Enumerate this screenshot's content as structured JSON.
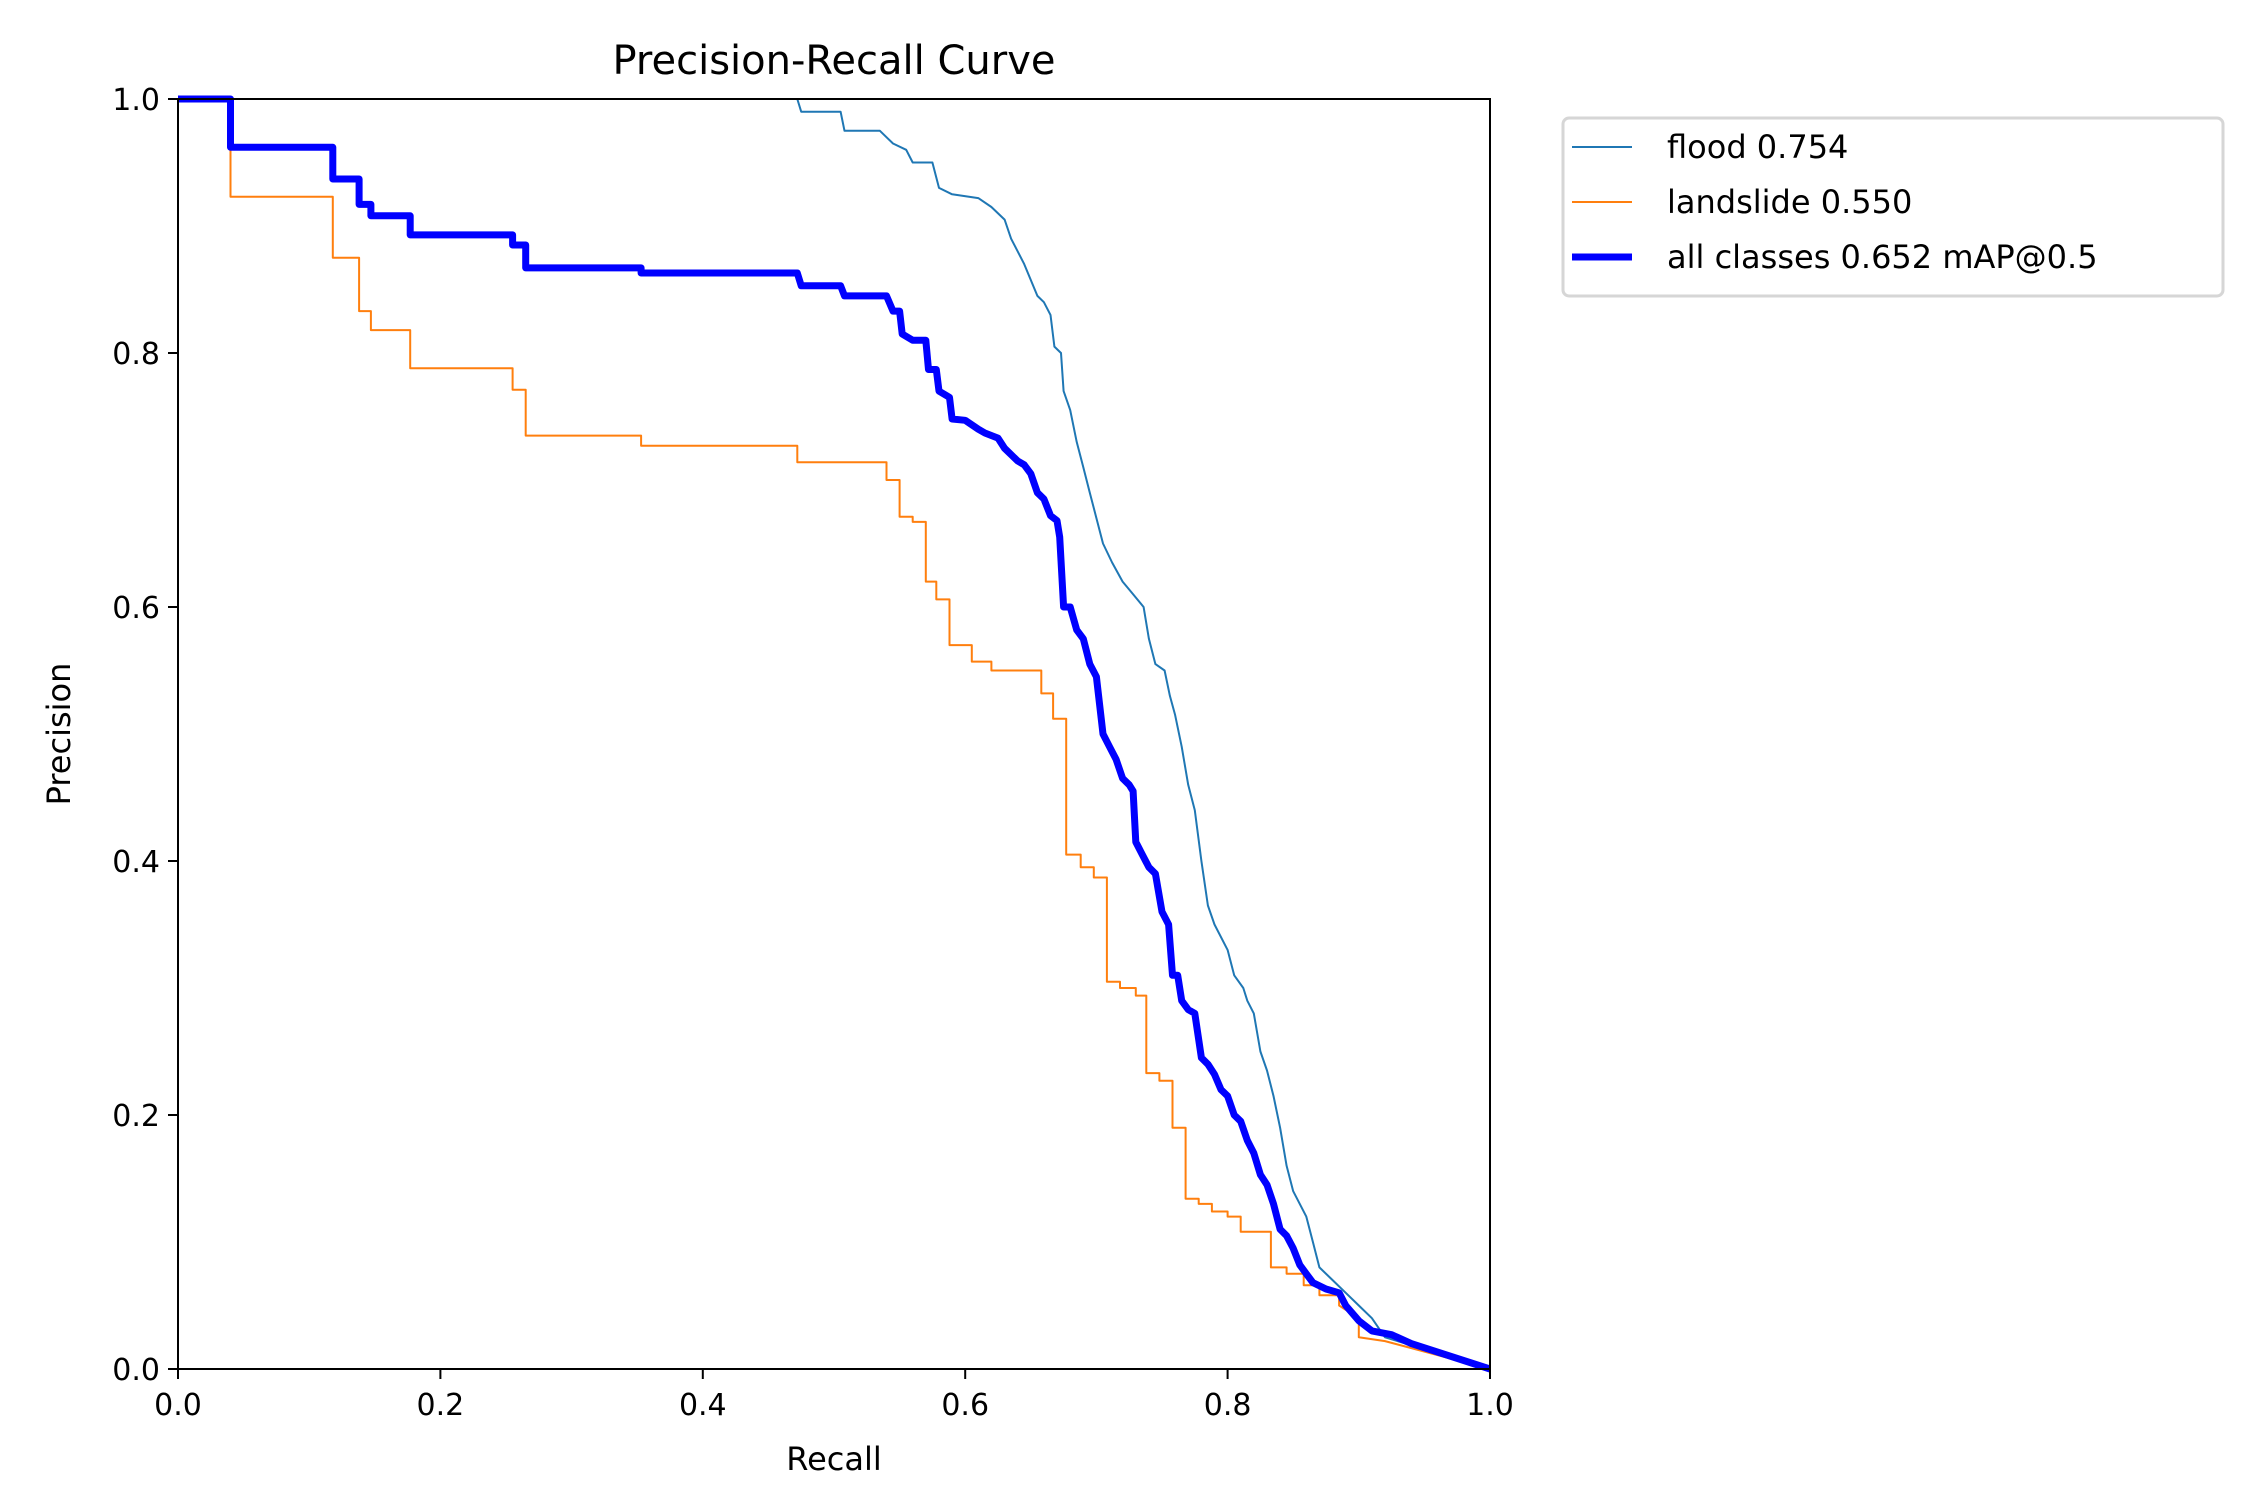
{
  "chart_data": {
    "type": "line",
    "title": "Precision-Recall Curve",
    "xlabel": "Recall",
    "ylabel": "Precision",
    "xlim": [
      0,
      1
    ],
    "ylim": [
      0,
      1
    ],
    "grid": false,
    "legend_placement": "outside-top-right",
    "xticks": [
      "0.0",
      "0.2",
      "0.4",
      "0.6",
      "0.8",
      "1.0"
    ],
    "yticks": [
      "0.0",
      "0.2",
      "0.4",
      "0.6",
      "0.8",
      "1.0"
    ],
    "series": [
      {
        "name": "flood 0.754",
        "color": "#1f77b4",
        "width": "thin",
        "points": [
          [
            0,
            1
          ],
          [
            0.472,
            1
          ],
          [
            0.475,
            0.99
          ],
          [
            0.505,
            0.99
          ],
          [
            0.508,
            0.975
          ],
          [
            0.535,
            0.975
          ],
          [
            0.545,
            0.965
          ],
          [
            0.555,
            0.96
          ],
          [
            0.56,
            0.95
          ],
          [
            0.575,
            0.95
          ],
          [
            0.58,
            0.93
          ],
          [
            0.59,
            0.925
          ],
          [
            0.61,
            0.922
          ],
          [
            0.62,
            0.915
          ],
          [
            0.63,
            0.905
          ],
          [
            0.635,
            0.89
          ],
          [
            0.64,
            0.88
          ],
          [
            0.645,
            0.87
          ],
          [
            0.655,
            0.845
          ],
          [
            0.66,
            0.84
          ],
          [
            0.665,
            0.83
          ],
          [
            0.668,
            0.805
          ],
          [
            0.673,
            0.8
          ],
          [
            0.675,
            0.77
          ],
          [
            0.68,
            0.755
          ],
          [
            0.685,
            0.73
          ],
          [
            0.69,
            0.71
          ],
          [
            0.695,
            0.69
          ],
          [
            0.7,
            0.67
          ],
          [
            0.705,
            0.65
          ],
          [
            0.712,
            0.635
          ],
          [
            0.72,
            0.62
          ],
          [
            0.728,
            0.61
          ],
          [
            0.736,
            0.6
          ],
          [
            0.74,
            0.575
          ],
          [
            0.745,
            0.555
          ],
          [
            0.752,
            0.55
          ],
          [
            0.756,
            0.53
          ],
          [
            0.76,
            0.515
          ],
          [
            0.765,
            0.49
          ],
          [
            0.77,
            0.46
          ],
          [
            0.775,
            0.44
          ],
          [
            0.78,
            0.4
          ],
          [
            0.785,
            0.365
          ],
          [
            0.79,
            0.35
          ],
          [
            0.8,
            0.33
          ],
          [
            0.805,
            0.31
          ],
          [
            0.812,
            0.3
          ],
          [
            0.815,
            0.29
          ],
          [
            0.82,
            0.28
          ],
          [
            0.825,
            0.25
          ],
          [
            0.83,
            0.235
          ],
          [
            0.835,
            0.215
          ],
          [
            0.84,
            0.19
          ],
          [
            0.845,
            0.16
          ],
          [
            0.85,
            0.14
          ],
          [
            0.86,
            0.12
          ],
          [
            0.865,
            0.1
          ],
          [
            0.87,
            0.08
          ],
          [
            0.88,
            0.07
          ],
          [
            0.89,
            0.06
          ],
          [
            0.9,
            0.05
          ],
          [
            0.91,
            0.04
          ],
          [
            0.92,
            0.025
          ],
          [
            1,
            0
          ]
        ]
      },
      {
        "name": "landslide 0.550",
        "color": "#ff7f0e",
        "width": "thin",
        "points": [
          [
            0,
            1
          ],
          [
            0.04,
            1
          ],
          [
            0.04,
            0.923
          ],
          [
            0.118,
            0.923
          ],
          [
            0.118,
            0.875
          ],
          [
            0.138,
            0.875
          ],
          [
            0.138,
            0.833
          ],
          [
            0.147,
            0.833
          ],
          [
            0.147,
            0.818
          ],
          [
            0.177,
            0.818
          ],
          [
            0.177,
            0.788
          ],
          [
            0.255,
            0.788
          ],
          [
            0.255,
            0.771
          ],
          [
            0.265,
            0.771
          ],
          [
            0.265,
            0.735
          ],
          [
            0.353,
            0.735
          ],
          [
            0.353,
            0.727
          ],
          [
            0.472,
            0.727
          ],
          [
            0.472,
            0.714
          ],
          [
            0.54,
            0.714
          ],
          [
            0.54,
            0.7
          ],
          [
            0.55,
            0.7
          ],
          [
            0.55,
            0.671
          ],
          [
            0.56,
            0.671
          ],
          [
            0.56,
            0.667
          ],
          [
            0.57,
            0.667
          ],
          [
            0.57,
            0.62
          ],
          [
            0.578,
            0.62
          ],
          [
            0.578,
            0.606
          ],
          [
            0.588,
            0.606
          ],
          [
            0.588,
            0.57
          ],
          [
            0.605,
            0.57
          ],
          [
            0.605,
            0.557
          ],
          [
            0.62,
            0.557
          ],
          [
            0.62,
            0.55
          ],
          [
            0.658,
            0.55
          ],
          [
            0.658,
            0.532
          ],
          [
            0.667,
            0.532
          ],
          [
            0.667,
            0.512
          ],
          [
            0.677,
            0.512
          ],
          [
            0.677,
            0.405
          ],
          [
            0.688,
            0.405
          ],
          [
            0.688,
            0.395
          ],
          [
            0.698,
            0.395
          ],
          [
            0.698,
            0.387
          ],
          [
            0.708,
            0.387
          ],
          [
            0.708,
            0.305
          ],
          [
            0.718,
            0.305
          ],
          [
            0.718,
            0.3
          ],
          [
            0.73,
            0.3
          ],
          [
            0.73,
            0.294
          ],
          [
            0.738,
            0.294
          ],
          [
            0.738,
            0.233
          ],
          [
            0.748,
            0.233
          ],
          [
            0.748,
            0.227
          ],
          [
            0.758,
            0.227
          ],
          [
            0.758,
            0.19
          ],
          [
            0.768,
            0.19
          ],
          [
            0.768,
            0.134
          ],
          [
            0.778,
            0.134
          ],
          [
            0.778,
            0.13
          ],
          [
            0.788,
            0.13
          ],
          [
            0.788,
            0.124
          ],
          [
            0.8,
            0.124
          ],
          [
            0.8,
            0.12
          ],
          [
            0.81,
            0.12
          ],
          [
            0.81,
            0.108
          ],
          [
            0.833,
            0.108
          ],
          [
            0.833,
            0.08
          ],
          [
            0.845,
            0.08
          ],
          [
            0.845,
            0.075
          ],
          [
            0.858,
            0.075
          ],
          [
            0.858,
            0.066
          ],
          [
            0.87,
            0.066
          ],
          [
            0.87,
            0.058
          ],
          [
            0.885,
            0.058
          ],
          [
            0.885,
            0.05
          ],
          [
            0.9,
            0.04
          ],
          [
            0.9,
            0.025
          ],
          [
            0.92,
            0.022
          ],
          [
            1,
            0
          ]
        ]
      },
      {
        "name": "all classes 0.652 mAP@0.5",
        "color": "#0000ff",
        "width": "thick",
        "points": [
          [
            0,
            1
          ],
          [
            0.04,
            1
          ],
          [
            0.04,
            0.962
          ],
          [
            0.118,
            0.962
          ],
          [
            0.118,
            0.937
          ],
          [
            0.138,
            0.937
          ],
          [
            0.138,
            0.917
          ],
          [
            0.147,
            0.917
          ],
          [
            0.147,
            0.908
          ],
          [
            0.177,
            0.908
          ],
          [
            0.177,
            0.893
          ],
          [
            0.255,
            0.893
          ],
          [
            0.255,
            0.885
          ],
          [
            0.265,
            0.885
          ],
          [
            0.265,
            0.867
          ],
          [
            0.353,
            0.867
          ],
          [
            0.353,
            0.863
          ],
          [
            0.472,
            0.863
          ],
          [
            0.475,
            0.853
          ],
          [
            0.505,
            0.853
          ],
          [
            0.508,
            0.845
          ],
          [
            0.54,
            0.845
          ],
          [
            0.545,
            0.833
          ],
          [
            0.55,
            0.833
          ],
          [
            0.552,
            0.815
          ],
          [
            0.56,
            0.81
          ],
          [
            0.57,
            0.81
          ],
          [
            0.572,
            0.787
          ],
          [
            0.578,
            0.787
          ],
          [
            0.58,
            0.77
          ],
          [
            0.588,
            0.765
          ],
          [
            0.59,
            0.748
          ],
          [
            0.6,
            0.747
          ],
          [
            0.61,
            0.74
          ],
          [
            0.615,
            0.737
          ],
          [
            0.625,
            0.733
          ],
          [
            0.63,
            0.725
          ],
          [
            0.635,
            0.72
          ],
          [
            0.64,
            0.715
          ],
          [
            0.645,
            0.712
          ],
          [
            0.65,
            0.705
          ],
          [
            0.655,
            0.69
          ],
          [
            0.66,
            0.685
          ],
          [
            0.665,
            0.672
          ],
          [
            0.67,
            0.668
          ],
          [
            0.672,
            0.655
          ],
          [
            0.675,
            0.6
          ],
          [
            0.68,
            0.6
          ],
          [
            0.685,
            0.582
          ],
          [
            0.69,
            0.575
          ],
          [
            0.695,
            0.555
          ],
          [
            0.7,
            0.545
          ],
          [
            0.705,
            0.5
          ],
          [
            0.71,
            0.49
          ],
          [
            0.715,
            0.48
          ],
          [
            0.72,
            0.465
          ],
          [
            0.725,
            0.46
          ],
          [
            0.728,
            0.455
          ],
          [
            0.73,
            0.415
          ],
          [
            0.735,
            0.405
          ],
          [
            0.74,
            0.395
          ],
          [
            0.745,
            0.39
          ],
          [
            0.75,
            0.36
          ],
          [
            0.755,
            0.35
          ],
          [
            0.758,
            0.31
          ],
          [
            0.762,
            0.31
          ],
          [
            0.765,
            0.29
          ],
          [
            0.77,
            0.283
          ],
          [
            0.775,
            0.28
          ],
          [
            0.78,
            0.245
          ],
          [
            0.785,
            0.24
          ],
          [
            0.79,
            0.232
          ],
          [
            0.795,
            0.22
          ],
          [
            0.8,
            0.215
          ],
          [
            0.805,
            0.2
          ],
          [
            0.81,
            0.195
          ],
          [
            0.815,
            0.18
          ],
          [
            0.82,
            0.17
          ],
          [
            0.825,
            0.153
          ],
          [
            0.83,
            0.145
          ],
          [
            0.835,
            0.13
          ],
          [
            0.84,
            0.11
          ],
          [
            0.845,
            0.105
          ],
          [
            0.85,
            0.095
          ],
          [
            0.855,
            0.082
          ],
          [
            0.86,
            0.075
          ],
          [
            0.865,
            0.068
          ],
          [
            0.875,
            0.063
          ],
          [
            0.885,
            0.06
          ],
          [
            0.89,
            0.05
          ],
          [
            0.9,
            0.038
          ],
          [
            0.91,
            0.03
          ],
          [
            0.925,
            0.027
          ],
          [
            0.94,
            0.02
          ],
          [
            1,
            0
          ]
        ]
      }
    ]
  }
}
